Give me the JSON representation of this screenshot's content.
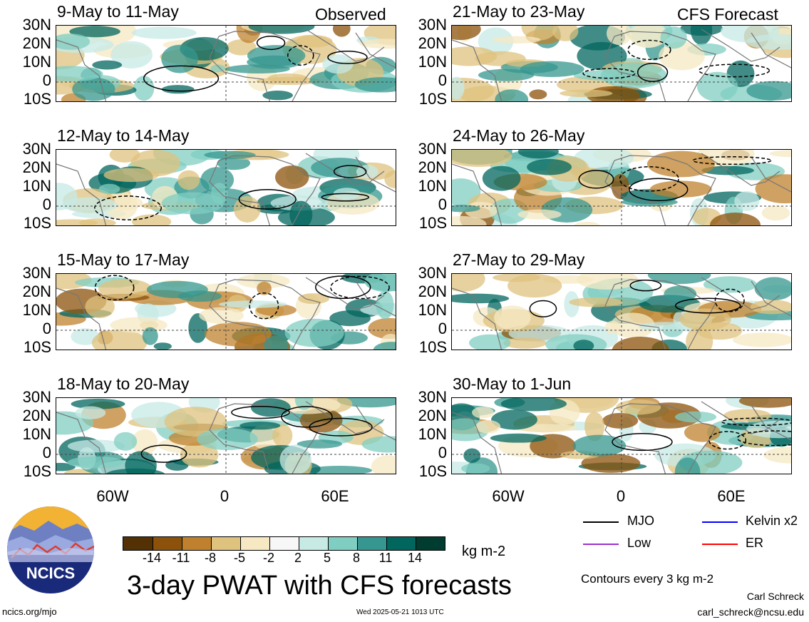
{
  "panels_left": [
    {
      "title": "9-May to 11-May",
      "tag": "Observed"
    },
    {
      "title": "12-May to 14-May",
      "tag": ""
    },
    {
      "title": "15-May to 17-May",
      "tag": ""
    },
    {
      "title": "18-May to 20-May",
      "tag": ""
    }
  ],
  "panels_right": [
    {
      "title": "21-May to 23-May",
      "tag": "CFS Forecast"
    },
    {
      "title": "24-May to 26-May",
      "tag": ""
    },
    {
      "title": "27-May to 29-May",
      "tag": ""
    },
    {
      "title": "30-May to 1-Jun",
      "tag": ""
    }
  ],
  "lat_labels": [
    "30N",
    "20N",
    "10N",
    "0",
    "10S"
  ],
  "lon_labels": [
    "60W",
    "0",
    "60E"
  ],
  "colorbar": {
    "colors": [
      "#543005",
      "#8c510a",
      "#bf812d",
      "#dfc27d",
      "#f6e8c3",
      "#f5f5f5",
      "#c7eae5",
      "#80cdc1",
      "#35978f",
      "#01665e",
      "#003c30"
    ],
    "colors_full": [
      "#543005",
      "#8c510a",
      "#bf812d",
      "#dfc27d",
      "#f6e8c3",
      "#f7f7f7",
      "#c7eae5",
      "#80cdc1",
      "#35978f",
      "#01665e",
      "#003c30"
    ],
    "ticks": [
      "-14",
      "-11",
      "-8",
      "-5",
      "-2",
      "2",
      "5",
      "8",
      "11",
      "14"
    ],
    "unit": "kg m-2"
  },
  "legend": {
    "items": [
      {
        "label": "MJO",
        "color": "#000000"
      },
      {
        "label": "Kelvin x2",
        "color": "#0000ff"
      },
      {
        "label": "Low",
        "color": "#9933cc"
      },
      {
        "label": "ER",
        "color": "#ff0000"
      }
    ],
    "contour_note": "Contours every 3 kg m-2"
  },
  "main_title": "3-day PWAT with CFS forecasts",
  "logo_text": "NCICS",
  "footer": {
    "left": "ncics.org/mjo",
    "center": "Wed 2025-05-21 1013 UTC",
    "author": "Carl Schreck",
    "email": "carl_schreck@ncsu.edu"
  }
}
